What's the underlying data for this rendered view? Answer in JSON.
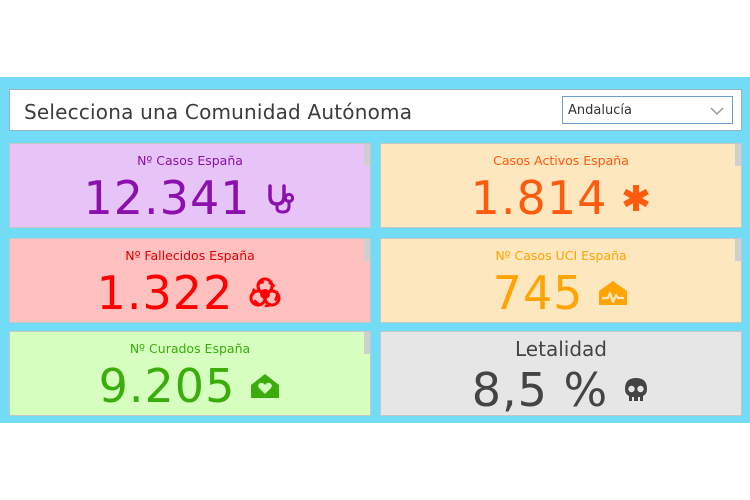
{
  "selector": {
    "label": "Selecciona una Comunidad Autónoma",
    "selected": "Andalucía"
  },
  "cards": {
    "casos": {
      "title": "Nº Casos España",
      "value": "12.341",
      "color": "#8b10ad",
      "icon": "stethoscope-icon"
    },
    "activos": {
      "title": "Casos Activos España",
      "value": "1.814",
      "color": "#ff5a0d",
      "icon": "asterisk-icon"
    },
    "fallec": {
      "title": "Nº Fallecidos España",
      "value": "1.322",
      "color": "#ff0000",
      "icon": "biohazard-icon"
    },
    "uci": {
      "title": "Nº Casos UCI España",
      "value": "745",
      "color": "#ffa400",
      "icon": "hospital-heartbeat-icon"
    },
    "curados": {
      "title": "Nº Curados España",
      "value": "9.205",
      "color": "#3aad0c",
      "icon": "home-heart-icon"
    },
    "letal": {
      "title": "Letalidad",
      "value": "8,5 %",
      "color": "#444444",
      "icon": "skull-icon"
    }
  }
}
